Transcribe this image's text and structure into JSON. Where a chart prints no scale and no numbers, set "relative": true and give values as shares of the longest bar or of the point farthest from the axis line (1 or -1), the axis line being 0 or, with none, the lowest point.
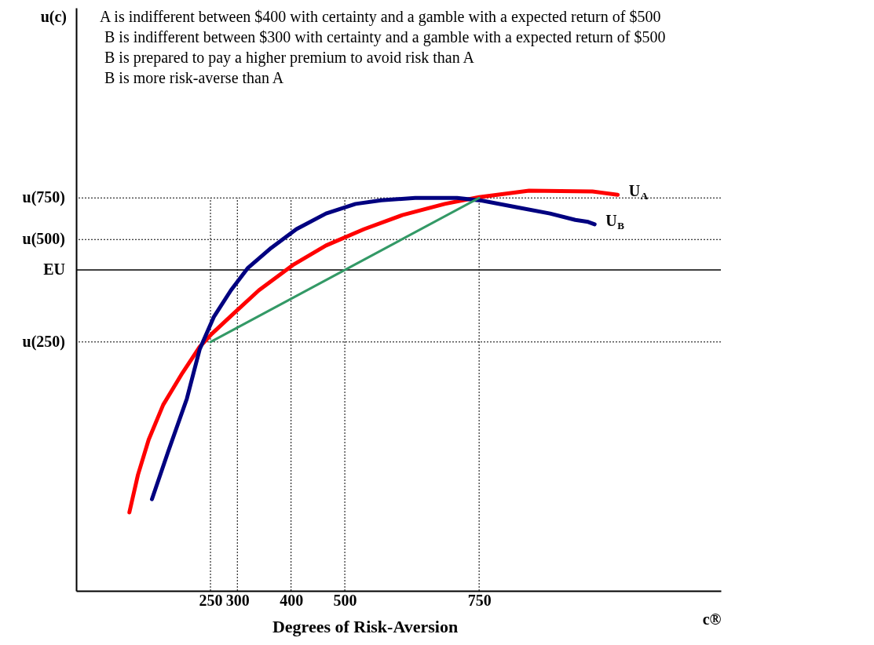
{
  "chart_data": {
    "type": "line",
    "relative": true,
    "xlabel": "c®",
    "annotations": [
      "u(c)",
      "A is indifferent between $400 with certainty and a gamble with a expected return of $500",
      "B is indifferent between $300 with certainty and a gamble with a expected return of $500",
      "B is prepared to pay a higher premium to avoid risk than A",
      "B is more risk-averse than A",
      "Degrees of Risk-Aversion"
    ],
    "xlim": [
      0,
      1200
    ],
    "xticks": [
      250,
      300,
      400,
      500,
      750
    ],
    "tick_labels": "x",
    "series": [
      {
        "name": "U$_{A}$",
        "color": "#ff0000",
        "x": [
          99,
          115,
          135,
          162,
          198,
          230,
          253,
          289,
          340,
          403,
          465,
          536,
          607,
          686,
          750,
          843,
          961,
          1008
        ],
        "values": [
          0.196,
          0.29,
          0.378,
          0.465,
          0.545,
          0.61,
          0.643,
          0.688,
          0.751,
          0.814,
          0.863,
          0.904,
          0.939,
          0.967,
          0.984,
          1.0,
          0.998,
          0.99
        ]
      },
      {
        "name": "U$_{B}$",
        "color": "#000080",
        "x": [
          141,
          171,
          206,
          230,
          256,
          288,
          319,
          363,
          410,
          465,
          520,
          568,
          631,
          709,
          756,
          819,
          882,
          929,
          953,
          965
        ],
        "values": [
          0.229,
          0.347,
          0.48,
          0.604,
          0.684,
          0.751,
          0.806,
          0.857,
          0.904,
          0.943,
          0.967,
          0.976,
          0.982,
          0.982,
          0.975,
          0.959,
          0.943,
          0.927,
          0.922,
          0.916
        ]
      },
      {
        "color": "#339966",
        "x": [
          250,
          750
        ],
        "values": [
          0.622,
          0.982
        ]
      }
    ],
    "ref_lines": [
      {
        "axis": "y",
        "value": 0.982,
        "label": "u(750)",
        "color": "#000000",
        "line_style": "dotted"
      },
      {
        "axis": "y",
        "value": 0.878,
        "label": "u(500)",
        "color": "#000000",
        "line_style": "dotted"
      },
      {
        "axis": "y",
        "value": 0.802,
        "label": "EU",
        "color": "#000000",
        "line_style": "solid"
      },
      {
        "axis": "y",
        "value": 0.622,
        "label": "u(250)",
        "color": "#000000",
        "line_style": "dotted"
      },
      {
        "axis": "x",
        "value": 250,
        "color": "#000000",
        "line_style": "dotted"
      },
      {
        "axis": "x",
        "value": 300,
        "color": "#000000",
        "line_style": "dotted"
      },
      {
        "axis": "x",
        "value": 400,
        "color": "#000000",
        "line_style": "dotted"
      },
      {
        "axis": "x",
        "value": 500,
        "color": "#000000",
        "line_style": "dotted"
      },
      {
        "axis": "x",
        "value": 750,
        "color": "#000000",
        "line_style": "dotted"
      }
    ]
  }
}
